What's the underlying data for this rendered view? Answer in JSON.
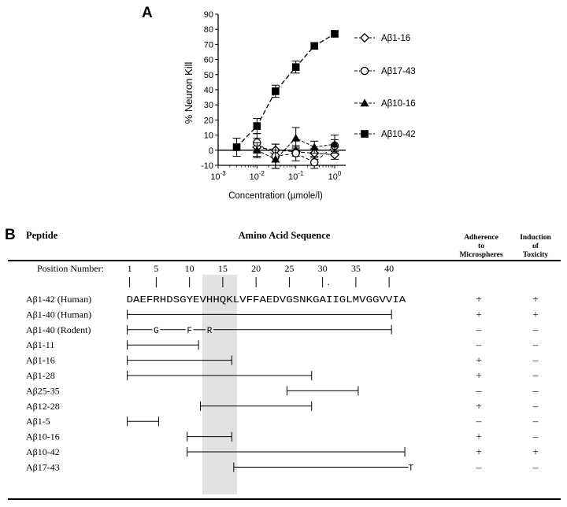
{
  "panel_a": {
    "letter": "A",
    "chart_data": {
      "type": "line",
      "title": "",
      "xlabel": "Concentration (µmole/l)",
      "ylabel": "% Neuron Kill",
      "x_scale": "log",
      "xlim": [
        0.001,
        1
      ],
      "ylim": [
        -10,
        90
      ],
      "x_tick_labels": [
        {
          "base": "10",
          "exp": "-3",
          "value": 0.001
        },
        {
          "base": "10",
          "exp": "-2",
          "value": 0.01
        },
        {
          "base": "10",
          "exp": "-1",
          "value": 0.1
        },
        {
          "base": "10",
          "exp": "0",
          "value": 1
        }
      ],
      "y_ticks": [
        -10,
        0,
        10,
        20,
        30,
        40,
        50,
        60,
        70,
        80,
        90
      ],
      "legend_position": "right",
      "series": [
        {
          "name": "Aβ1-16",
          "marker": "diamond-open",
          "points": [
            [
              0.01,
              2
            ],
            [
              0.03,
              0
            ],
            [
              0.1,
              -1
            ],
            [
              0.3,
              -2
            ],
            [
              1,
              -3
            ]
          ],
          "errors": [
            6,
            4,
            3,
            3,
            3
          ]
        },
        {
          "name": "Aβ17-43",
          "marker": "circle-open",
          "points": [
            [
              0.01,
              5
            ],
            [
              0.03,
              -4
            ],
            [
              0.1,
              -2
            ],
            [
              0.3,
              -8
            ],
            [
              1,
              3
            ]
          ],
          "errors": [
            6,
            8,
            5,
            4,
            4
          ]
        },
        {
          "name": "Aβ10-16",
          "marker": "triangle-filled",
          "points": [
            [
              0.01,
              0
            ],
            [
              0.03,
              -6
            ],
            [
              0.1,
              8
            ],
            [
              0.3,
              2
            ],
            [
              1,
              4
            ]
          ],
          "errors": [
            5,
            6,
            7,
            4,
            6
          ]
        },
        {
          "name": "Aβ10-42",
          "marker": "square-filled",
          "points": [
            [
              0.003,
              2
            ],
            [
              0.01,
              16
            ],
            [
              0.03,
              39
            ],
            [
              0.1,
              55
            ],
            [
              0.3,
              69
            ],
            [
              1,
              77
            ]
          ],
          "errors": [
            6,
            5,
            4,
            4,
            2,
            2
          ]
        }
      ]
    }
  },
  "panel_b": {
    "letter": "B",
    "headers": {
      "peptide": "Peptide",
      "sequence": "Amino Acid Sequence",
      "adherence": [
        "Adherence",
        "to",
        "Microspheres"
      ],
      "toxicity": [
        "Induction",
        "of",
        "Toxicity"
      ]
    },
    "position_label": "Position Number:",
    "positions": [
      1,
      5,
      10,
      15,
      20,
      25,
      30,
      35,
      40
    ],
    "dot_mark": ".",
    "sequence": "DAEFRHDSGYEVHHQKLVFFAEDVGSNKGAIIGLMVGGVVIA",
    "rodent_subs": [
      {
        "pos": 5,
        "aa": "G"
      },
      {
        "pos": 10,
        "aa": "F"
      },
      {
        "pos": 13,
        "aa": "R"
      }
    ],
    "shade_range": [
      12,
      15
    ],
    "rows": [
      {
        "name": "Aβ1-42 (Human)",
        "start": 1,
        "end": 42,
        "kind": "seq",
        "adherence": "+",
        "toxicity": "+"
      },
      {
        "name": "Aβ1-40 (Human)",
        "start": 1,
        "end": 40,
        "kind": "bar",
        "adherence": "+",
        "toxicity": "+"
      },
      {
        "name": "Aβ1-40 (Rodent)",
        "start": 1,
        "end": 40,
        "kind": "rodent",
        "adherence": "–",
        "toxicity": "–"
      },
      {
        "name": "Aβ1-11",
        "start": 1,
        "end": 11,
        "kind": "bar",
        "adherence": "–",
        "toxicity": "–"
      },
      {
        "name": "Aβ1-16",
        "start": 1,
        "end": 16,
        "kind": "bar",
        "adherence": "+",
        "toxicity": "–"
      },
      {
        "name": "Aβ1-28",
        "start": 1,
        "end": 28,
        "kind": "bar",
        "adherence": "+",
        "toxicity": "–"
      },
      {
        "name": "Aβ25-35",
        "start": 25,
        "end": 35,
        "kind": "bar",
        "adherence": "–",
        "toxicity": "–"
      },
      {
        "name": "Aβ12-28",
        "start": 12,
        "end": 28,
        "kind": "bar",
        "adherence": "+",
        "toxicity": "–"
      },
      {
        "name": "Aβ1-5",
        "start": 1,
        "end": 5,
        "kind": "bar",
        "adherence": "–",
        "toxicity": "–"
      },
      {
        "name": "Aβ10-16",
        "start": 10,
        "end": 16,
        "kind": "bar",
        "adherence": "+",
        "toxicity": "–"
      },
      {
        "name": "Aβ10-42",
        "start": 10,
        "end": 42,
        "kind": "bar",
        "adherence": "+",
        "toxicity": "+"
      },
      {
        "name": "Aβ17-43",
        "start": 17,
        "end": 43,
        "kind": "bar-t",
        "end_mark": "T",
        "adherence": "–",
        "toxicity": "–"
      }
    ]
  }
}
